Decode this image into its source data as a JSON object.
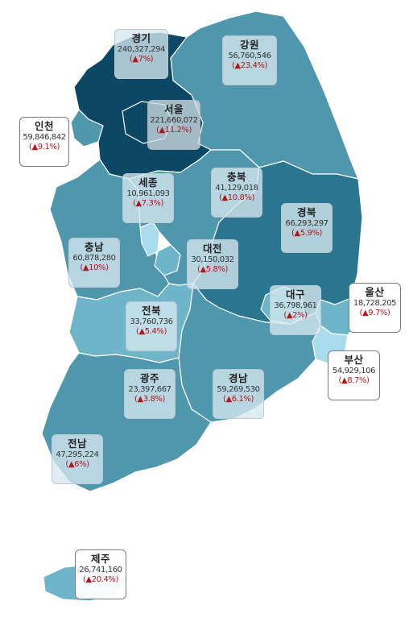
{
  "colors": {
    "darkest": "#0c4865",
    "dark": "#2a7691",
    "medium": "#4f97ad",
    "light": "#6fb5c9",
    "lightest": "#a9dced",
    "change_text": "#b3161c"
  },
  "regions": [
    {
      "id": "gyeonggi",
      "name": "경기",
      "value": "240,327,294",
      "change": "(▲7%)",
      "change_pct": 7,
      "fill": "darkest"
    },
    {
      "id": "gangwon",
      "name": "강원",
      "value": "56,760,546",
      "change": "(▲23.4%)",
      "change_pct": 23.4,
      "fill": "medium"
    },
    {
      "id": "seoul",
      "name": "서울",
      "value": "221,660,072",
      "change": "(▲11.2%)",
      "change_pct": 11.2,
      "fill": "darkest"
    },
    {
      "id": "incheon",
      "name": "인천",
      "value": "59,846,842",
      "change": "(▲9.1%)",
      "change_pct": 9.1,
      "fill": "medium"
    },
    {
      "id": "sejong",
      "name": "세종",
      "value": "10,961,093",
      "change": "(▲7.3%)",
      "change_pct": 7.3,
      "fill": "lightest"
    },
    {
      "id": "chungbuk",
      "name": "충북",
      "value": "41,129,018",
      "change": "(▲10.8%)",
      "change_pct": 10.8,
      "fill": "medium"
    },
    {
      "id": "gyeongbuk",
      "name": "경북",
      "value": "66,293,297",
      "change": "(▲5.9%)",
      "change_pct": 5.9,
      "fill": "dark"
    },
    {
      "id": "chungnam",
      "name": "충남",
      "value": "60,878,280",
      "change": "(▲10%)",
      "change_pct": 10,
      "fill": "medium"
    },
    {
      "id": "daejeon",
      "name": "대전",
      "value": "30,150,032",
      "change": "(▲5.8%)",
      "change_pct": 5.8,
      "fill": "light"
    },
    {
      "id": "daegu",
      "name": "대구",
      "value": "36,798,961",
      "change": "(▲2%)",
      "change_pct": 2,
      "fill": "light"
    },
    {
      "id": "ulsan",
      "name": "울산",
      "value": "18,728,205",
      "change": "(▲9.7%)",
      "change_pct": 9.7,
      "fill": "light"
    },
    {
      "id": "jeonbuk",
      "name": "전북",
      "value": "33,760,736",
      "change": "(▲5.4%)",
      "change_pct": 5.4,
      "fill": "light"
    },
    {
      "id": "busan",
      "name": "부산",
      "value": "54,929,106",
      "change": "(▲8.7%)",
      "change_pct": 8.7,
      "fill": "lightest"
    },
    {
      "id": "gwangju",
      "name": "광주",
      "value": "23,397,667",
      "change": "(▲3.8%)",
      "change_pct": 3.8,
      "fill": "light"
    },
    {
      "id": "gyeongnam",
      "name": "경남",
      "value": "59,269,530",
      "change": "(▲6.1%)",
      "change_pct": 6.1,
      "fill": "medium"
    },
    {
      "id": "jeonnam",
      "name": "전남",
      "value": "47,295,224",
      "change": "(▲6%)",
      "change_pct": 6,
      "fill": "medium"
    },
    {
      "id": "jeju",
      "name": "제주",
      "value": "26,741,160",
      "change": "(▲20.4%)",
      "change_pct": 20.4,
      "fill": "light"
    }
  ]
}
